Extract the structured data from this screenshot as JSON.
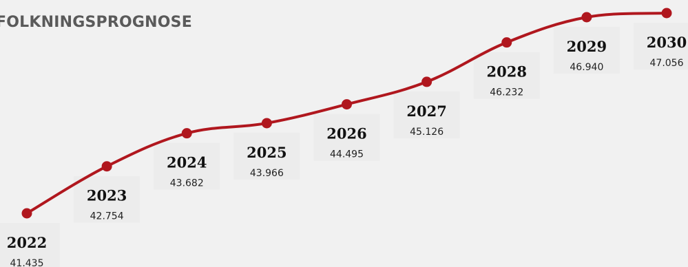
{
  "chart_data": {
    "type": "line",
    "title": "FOLKNINGSPROGNOSE",
    "x": [
      "2022",
      "2023",
      "2024",
      "2025",
      "2026",
      "2027",
      "2028",
      "2029",
      "2030"
    ],
    "series": [
      {
        "values": [
          41.435,
          42.754,
          43.682,
          43.966,
          44.495,
          45.126,
          46.232,
          46.94,
          47.056
        ]
      }
    ],
    "value_labels": [
      "41.435",
      "42.754",
      "43.682",
      "43.966",
      "44.495",
      "45.126",
      "46.232",
      "46.940",
      "47.056"
    ],
    "line_color": "#b0171e",
    "grid": false,
    "axes_visible": false
  }
}
